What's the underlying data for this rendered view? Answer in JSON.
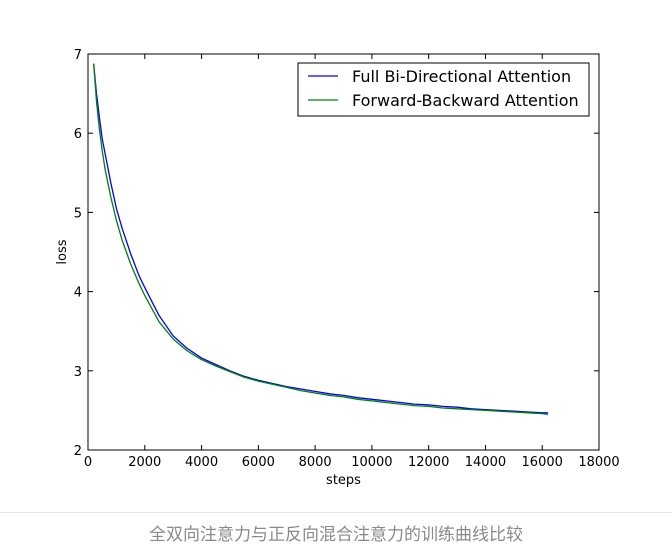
{
  "chart_data": {
    "type": "line",
    "title": "",
    "xlabel": "steps",
    "ylabel": "loss",
    "xlim": [
      0,
      18000
    ],
    "ylim": [
      2,
      7
    ],
    "xticks": [
      0,
      2000,
      4000,
      6000,
      8000,
      10000,
      12000,
      14000,
      16000,
      18000
    ],
    "yticks": [
      2,
      3,
      4,
      5,
      6,
      7
    ],
    "grid": false,
    "legend_position": "top-right",
    "series": [
      {
        "name": "Full Bi-Directional Attention",
        "color": "#0000ff",
        "x": [
          200,
          300,
          400,
          500,
          600,
          800,
          1000,
          1200,
          1500,
          1800,
          2000,
          2500,
          3000,
          3500,
          4000,
          4500,
          5000,
          5500,
          6000,
          6500,
          7000,
          7500,
          8000,
          8500,
          9000,
          9500,
          10000,
          10500,
          11000,
          11500,
          12000,
          12500,
          13000,
          13500,
          14000,
          14500,
          15000,
          15500,
          16000,
          16200
        ],
        "y": [
          6.87,
          6.5,
          6.2,
          5.93,
          5.75,
          5.38,
          5.05,
          4.8,
          4.48,
          4.2,
          4.05,
          3.7,
          3.44,
          3.28,
          3.16,
          3.08,
          3.0,
          2.93,
          2.88,
          2.84,
          2.8,
          2.77,
          2.74,
          2.71,
          2.69,
          2.66,
          2.64,
          2.62,
          2.6,
          2.58,
          2.57,
          2.55,
          2.54,
          2.52,
          2.51,
          2.5,
          2.49,
          2.48,
          2.47,
          2.47
        ]
      },
      {
        "name": "Forward-Backward Attention",
        "color": "#008000",
        "x": [
          200,
          300,
          400,
          500,
          600,
          800,
          1000,
          1200,
          1500,
          1800,
          2000,
          2500,
          3000,
          3500,
          4000,
          4500,
          5000,
          5500,
          6000,
          6500,
          7000,
          7500,
          8000,
          8500,
          9000,
          9500,
          10000,
          10500,
          11000,
          11500,
          12000,
          12500,
          13000,
          13500,
          14000,
          14500,
          15000,
          15500,
          16000,
          16200
        ],
        "y": [
          6.88,
          6.4,
          6.05,
          5.78,
          5.55,
          5.2,
          4.9,
          4.65,
          4.35,
          4.1,
          3.95,
          3.62,
          3.4,
          3.25,
          3.14,
          3.06,
          2.99,
          2.92,
          2.87,
          2.83,
          2.79,
          2.75,
          2.72,
          2.69,
          2.67,
          2.64,
          2.62,
          2.6,
          2.58,
          2.56,
          2.55,
          2.53,
          2.52,
          2.51,
          2.5,
          2.49,
          2.48,
          2.47,
          2.46,
          2.45
        ]
      }
    ]
  },
  "caption": "全双向注意力与正反向混合注意力的训练曲线比较"
}
